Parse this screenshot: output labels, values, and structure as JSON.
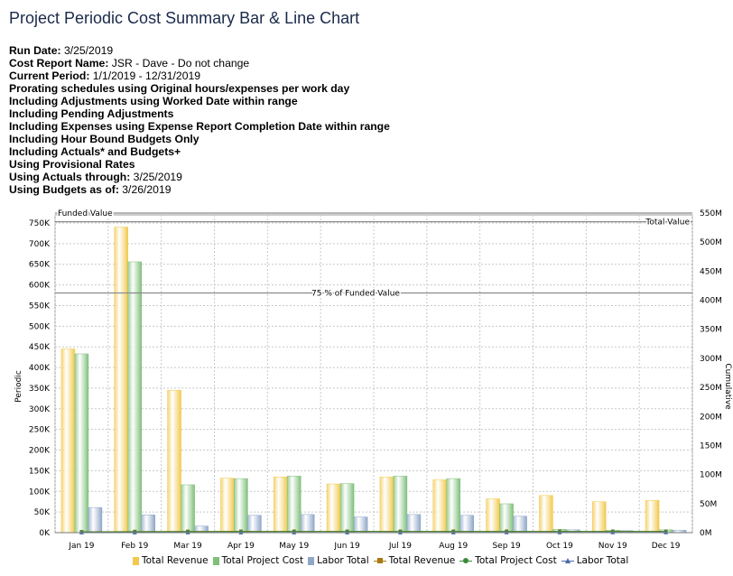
{
  "title": "Project Periodic Cost Summary Bar & Line Chart",
  "report_info": [
    {
      "label": "Run Date:",
      "value": " 3/25/2019"
    },
    {
      "label": "Cost Report Name:",
      "value": " JSR - Dave - Do not change"
    },
    {
      "label": "Current Period:",
      "value": " 1/1/2019 - 12/31/2019"
    },
    {
      "label": "Prorating schedules using Original hours/expenses per work day",
      "value": ""
    },
    {
      "label": "Including Adjustments using Worked Date within range",
      "value": ""
    },
    {
      "label": "Including Pending Adjustments",
      "value": ""
    },
    {
      "label": "Including Expenses using Expense Report Completion Date within range",
      "value": ""
    },
    {
      "label": "Including Hour Bound Budgets Only",
      "value": ""
    },
    {
      "label": "Including Actuals* and Budgets+",
      "value": ""
    },
    {
      "label": "Using Provisional Rates",
      "value": ""
    },
    {
      "label": "Using Actuals through:",
      "value": " 3/25/2019"
    },
    {
      "label": "Using Budgets as of:",
      "value": " 3/26/2019"
    }
  ],
  "chart_data": {
    "type": "bar",
    "categories": [
      "Jan 19",
      "Feb 19",
      "Mar 19",
      "Apr 19",
      "May 19",
      "Jun 19",
      "Jul 19",
      "Aug 19",
      "Sep 19",
      "Oct 19",
      "Nov 19",
      "Dec 19"
    ],
    "ylabel": "Periodic",
    "y2label": "Cumulative",
    "ylim": [
      0,
      750000
    ],
    "yticks": [
      "0K",
      "50K",
      "100K",
      "150K",
      "200K",
      "250K",
      "300K",
      "350K",
      "400K",
      "450K",
      "500K",
      "550K",
      "600K",
      "650K",
      "700K",
      "750K"
    ],
    "y2lim": [
      0,
      550000000
    ],
    "y2ticks": [
      "0M",
      "50M",
      "100M",
      "150M",
      "200M",
      "250M",
      "300M",
      "350M",
      "400M",
      "450M",
      "500M",
      "550M"
    ],
    "series": [
      {
        "name": "Total Revenue",
        "kind": "bar",
        "axis": "left",
        "color": "#f2c94c",
        "values": [
          445000,
          740000,
          345000,
          132000,
          135000,
          118000,
          135000,
          128000,
          82000,
          90000,
          75000,
          78000
        ]
      },
      {
        "name": "Total Project Cost",
        "kind": "bar",
        "axis": "left",
        "color": "#7ec07a",
        "values": [
          433000,
          656000,
          116000,
          131000,
          137000,
          119000,
          137000,
          131000,
          70000,
          8000,
          6000,
          7000
        ]
      },
      {
        "name": "Labor Total",
        "kind": "bar",
        "axis": "left",
        "color": "#8fa6c8",
        "values": [
          61000,
          43000,
          16000,
          42000,
          44000,
          38000,
          44000,
          42000,
          40000,
          7000,
          5000,
          6000
        ]
      },
      {
        "name": "Total Revenue",
        "kind": "line",
        "axis": "right",
        "color": "#a87a10",
        "values": [
          1500000,
          2000000,
          2200000,
          2300000,
          2400000,
          2400000,
          2400000,
          2400000,
          2400000,
          2400000,
          2400000,
          2400000
        ]
      },
      {
        "name": "Total Project Cost",
        "kind": "line",
        "axis": "right",
        "color": "#3a8a3a",
        "values": [
          1200000,
          1600000,
          1700000,
          1800000,
          1900000,
          1900000,
          1900000,
          1900000,
          1900000,
          1900000,
          1900000,
          1900000
        ]
      },
      {
        "name": "Labor Total",
        "kind": "line",
        "axis": "right",
        "color": "#4a6aa8",
        "values": [
          100000,
          150000,
          170000,
          200000,
          220000,
          240000,
          260000,
          280000,
          300000,
          310000,
          320000,
          330000
        ]
      }
    ],
    "reference_lines": [
      {
        "label": "Funded Value",
        "axis": "right",
        "value": 550000000,
        "label_pos": "left"
      },
      {
        "label": "Total Value",
        "axis": "right",
        "value": 535000000,
        "label_pos": "right"
      },
      {
        "label": "75 % of Funded Value",
        "axis": "right",
        "value": 412500000,
        "label_pos": "center"
      }
    ],
    "grid": true,
    "legend": "bottom"
  },
  "colors": {
    "title": "#1a2a4a",
    "grid": "#c8c8c8",
    "ref_line": "#8a8a8a"
  }
}
